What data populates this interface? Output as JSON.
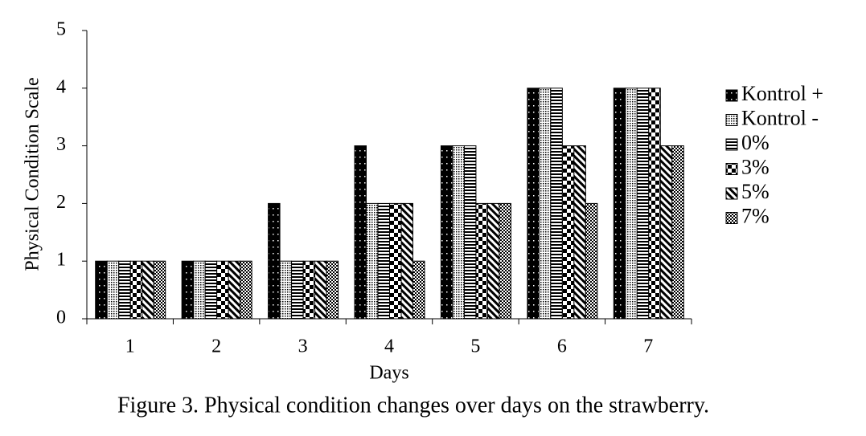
{
  "chart_data": {
    "type": "bar",
    "y_label": "Physical Condition Scale",
    "x_label": "Days",
    "caption": "Figure 3. Physical condition changes over days on the strawberry.",
    "categories": [
      "1",
      "2",
      "3",
      "4",
      "5",
      "6",
      "7"
    ],
    "series": [
      {
        "name": "Kontrol +",
        "color": "#000000",
        "pattern": "dots-on-black",
        "values": [
          1,
          1,
          2,
          3,
          3,
          4,
          4
        ]
      },
      {
        "name": "Kontrol -",
        "color": "#000000",
        "pattern": "dense-dots",
        "values": [
          1,
          1,
          1,
          2,
          3,
          4,
          4
        ]
      },
      {
        "name": "0%",
        "color": "#000000",
        "pattern": "horizontal-stripes",
        "values": [
          1,
          1,
          1,
          2,
          3,
          4,
          4
        ]
      },
      {
        "name": "3%",
        "color": "#000000",
        "pattern": "checker",
        "values": [
          1,
          1,
          1,
          2,
          2,
          3,
          4
        ]
      },
      {
        "name": "5%",
        "color": "#000000",
        "pattern": "diagonal",
        "values": [
          1,
          1,
          1,
          2,
          2,
          3,
          3
        ]
      },
      {
        "name": "7%",
        "color": "#000000",
        "pattern": "small-checker",
        "values": [
          1,
          1,
          1,
          1,
          2,
          2,
          3
        ]
      }
    ],
    "ylim": [
      0,
      5
    ],
    "yticks": [
      0,
      1,
      2,
      3,
      4,
      5
    ],
    "legend": "right"
  }
}
